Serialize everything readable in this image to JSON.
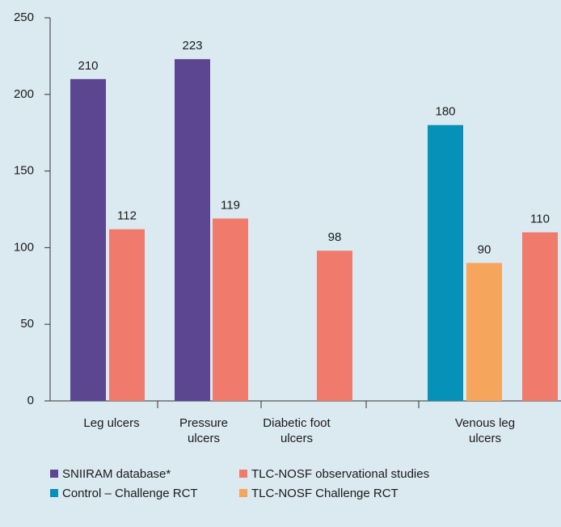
{
  "chart_data": {
    "type": "bar",
    "categories": [
      "Leg ulcers",
      "Pressure ulcers",
      "Diabetic foot ulcers",
      null,
      "Venous leg ulcers"
    ],
    "series": [
      {
        "name": "SNIIRAM database*",
        "color": "#5c4591",
        "values": [
          210,
          223,
          null,
          null,
          null
        ]
      },
      {
        "name": "TLC-NOSF observational studies",
        "color": "#f07a6c",
        "values": [
          112,
          119,
          98,
          null,
          110
        ]
      },
      {
        "name": "Control – Challenge RCT",
        "color": "#0591b8",
        "values": [
          null,
          null,
          null,
          null,
          180
        ]
      },
      {
        "name": "TLC-NOSF Challenge RCT",
        "color": "#f6a55c",
        "values": [
          null,
          null,
          null,
          null,
          90
        ]
      }
    ],
    "ylim": [
      0,
      250
    ],
    "yticks": [
      0,
      50,
      100,
      150,
      200,
      250
    ]
  }
}
